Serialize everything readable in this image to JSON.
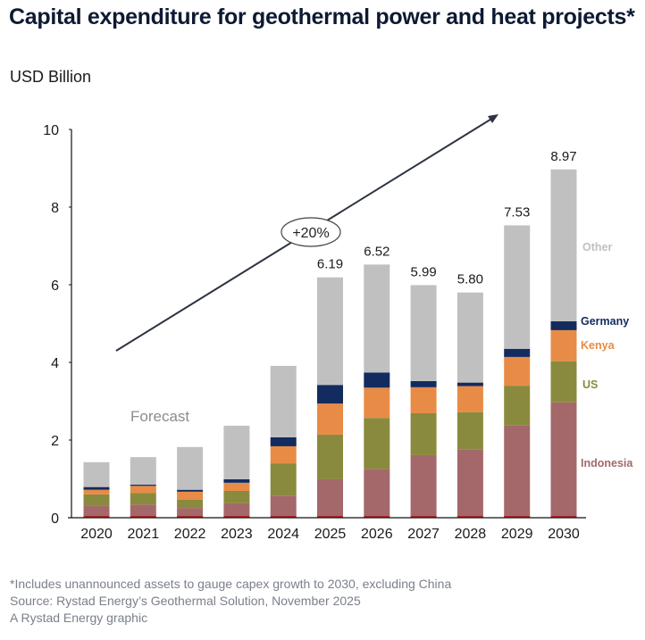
{
  "header": {
    "title": "Capital expenditure for geothermal power and heat projects*",
    "subtitle": "USD Billion"
  },
  "footer": {
    "note": "*Includes unannounced assets to gauge capex growth to 2030, excluding China",
    "source": "Source: Rystad Energy’s Geothermal Solution, November 2025",
    "credit": "A Rystad Energy graphic"
  },
  "chart_data": {
    "type": "bar",
    "stacked": true,
    "title": "Capital expenditure for geothermal power and heat projects*",
    "xlabel": "",
    "ylabel": "USD Billion",
    "ylim": [
      0,
      10
    ],
    "yticks": [
      0,
      2,
      4,
      6,
      8,
      10
    ],
    "grid": false,
    "legend_placement": "right (inline labels beside 2030 bar)",
    "categories": [
      "2020",
      "2021",
      "2022",
      "2023",
      "2024",
      "2025",
      "2026",
      "2027",
      "2028",
      "2029",
      "2030"
    ],
    "series": [
      {
        "name": "Indonesia",
        "color": "#a4686a",
        "values": [
          0.3,
          0.34,
          0.25,
          0.37,
          0.57,
          0.99,
          1.26,
          1.61,
          1.75,
          2.37,
          2.97
        ]
      },
      {
        "name": "US",
        "color": "#8a8a3e",
        "values": [
          0.3,
          0.3,
          0.21,
          0.32,
          0.83,
          1.15,
          1.31,
          1.08,
          0.97,
          1.03,
          1.06
        ]
      },
      {
        "name": "Kenya",
        "color": "#e88b46",
        "values": [
          0.12,
          0.18,
          0.21,
          0.21,
          0.44,
          0.8,
          0.78,
          0.67,
          0.67,
          0.74,
          0.8
        ]
      },
      {
        "name": "Germany",
        "color": "#132b5e",
        "values": [
          0.07,
          0.03,
          0.05,
          0.09,
          0.23,
          0.48,
          0.39,
          0.16,
          0.09,
          0.21,
          0.23
        ]
      },
      {
        "name": "Other",
        "color": "#c0c0c0",
        "values": [
          0.64,
          0.71,
          1.1,
          1.38,
          1.84,
          2.77,
          2.78,
          2.47,
          2.32,
          3.18,
          3.91
        ]
      }
    ],
    "total_labels": {
      "2025": "6.19",
      "2026": "6.52",
      "2027": "5.99",
      "2028": "5.80",
      "2029": "7.53",
      "2030": "8.97"
    },
    "legend_label_colors": {
      "Other": "#c0c0c0",
      "Germany": "#132b5e",
      "Kenya": "#e88b46",
      "US": "#8a8a3e",
      "Indonesia": "#a4686a"
    },
    "annotations": [
      {
        "text": "Forecast",
        "color": "#8c8c8c"
      },
      {
        "text": "+20%",
        "type": "growth-arrow",
        "note": "CAGR arrow spanning the forecast period"
      }
    ]
  }
}
